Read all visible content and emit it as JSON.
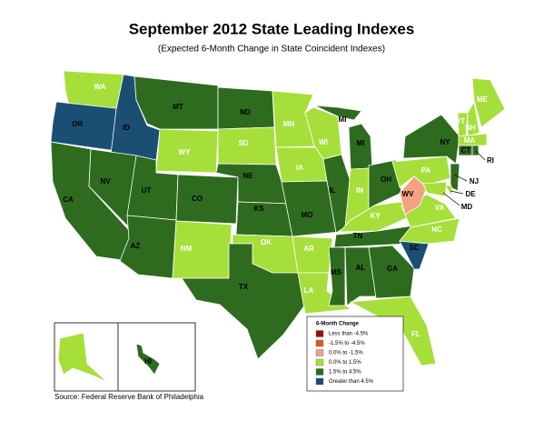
{
  "title": "September 2012 State Leading Indexes",
  "subtitle": "(Expected 6-Month Change in State Coincident Indexes)",
  "source": "Source: Federal Reserve Bank of Philadelphia",
  "legend": {
    "title": "6-Month Change",
    "items": [
      {
        "label": "Less than -4.5%",
        "color": "#9a0c0c"
      },
      {
        "label": "-1.5% to -4.5%",
        "color": "#e0581c"
      },
      {
        "label": "0.0% to -1.5%",
        "color": "#f4a281"
      },
      {
        "label": "0.0% to  1.5%",
        "color": "#a6df3a"
      },
      {
        "label": "1.5% to  4.5%",
        "color": "#2e6b1e"
      },
      {
        "label": "Greater than 4.5%",
        "color": "#1a4e72"
      }
    ]
  },
  "states": [
    {
      "label": "WA",
      "category": 3
    },
    {
      "label": "OR",
      "category": 5
    },
    {
      "label": "CA",
      "category": 4
    },
    {
      "label": "ID",
      "category": 5
    },
    {
      "label": "NV",
      "category": 4
    },
    {
      "label": "MT",
      "category": 4
    },
    {
      "label": "WY",
      "category": 3
    },
    {
      "label": "UT",
      "category": 4
    },
    {
      "label": "AZ",
      "category": 4
    },
    {
      "label": "CO",
      "category": 4
    },
    {
      "label": "NM",
      "category": 3
    },
    {
      "label": "ND",
      "category": 4
    },
    {
      "label": "SD",
      "category": 3
    },
    {
      "label": "NE",
      "category": 4
    },
    {
      "label": "KS",
      "category": 4
    },
    {
      "label": "OK",
      "category": 3
    },
    {
      "label": "TX",
      "category": 4
    },
    {
      "label": "MN",
      "category": 3
    },
    {
      "label": "IA",
      "category": 3
    },
    {
      "label": "MO",
      "category": 4
    },
    {
      "label": "AR",
      "category": 3
    },
    {
      "label": "LA",
      "category": 3
    },
    {
      "label": "WI",
      "category": 3
    },
    {
      "label": "IL",
      "category": 4
    },
    {
      "label": "MI",
      "category": 4
    },
    {
      "label": "MI",
      "category": 4
    },
    {
      "label": "IN",
      "category": 3
    },
    {
      "label": "OH",
      "category": 4
    },
    {
      "label": "KY",
      "category": 3
    },
    {
      "label": "TN",
      "category": 4
    },
    {
      "label": "MS",
      "category": 4
    },
    {
      "label": "AL",
      "category": 4
    },
    {
      "label": "GA",
      "category": 4
    },
    {
      "label": "FL",
      "category": 3
    },
    {
      "label": "SC",
      "category": 5
    },
    {
      "label": "NC",
      "category": 3
    },
    {
      "label": "VA",
      "category": 3
    },
    {
      "label": "WV",
      "category": 2
    },
    {
      "label": "PA",
      "category": 3
    },
    {
      "label": "NY",
      "category": 4
    },
    {
      "label": "NJ",
      "category": 4
    },
    {
      "label": "DE",
      "category": 3
    },
    {
      "label": "MD",
      "category": 3
    },
    {
      "label": "VT",
      "category": 3
    },
    {
      "label": "NH",
      "category": 3
    },
    {
      "label": "ME",
      "category": 3
    },
    {
      "label": "MA",
      "category": 3
    },
    {
      "label": "CT",
      "category": 4
    },
    {
      "label": "RI",
      "category": 4
    },
    {
      "label": "AK",
      "category": 3
    },
    {
      "label": "HI",
      "category": 4
    }
  ]
}
